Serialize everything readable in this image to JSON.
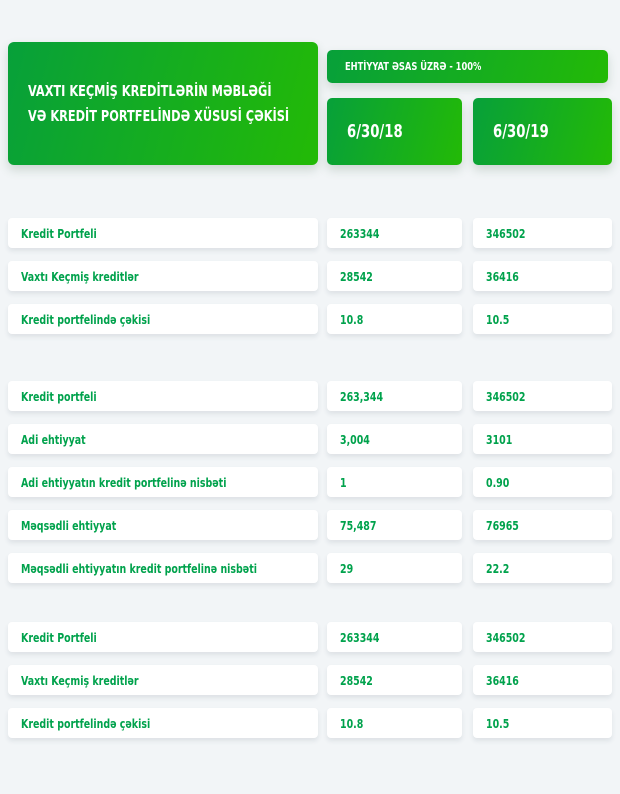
{
  "colors": {
    "gradient_start": "#07a03a",
    "gradient_end": "#23ba06",
    "text_green": "#00a24c",
    "page_background": "#f2f5f7"
  },
  "header": {
    "title_line1": "VAXTI KEÇMİŞ KREDİTLƏRİN MƏBLƏĞİ",
    "title_line2": "VƏ KREDİT PORTFELİNDƏ XÜSUSİ ÇƏKİSİ",
    "badge": "EHTİYYAT ƏSAS ÜZRƏ - 100%",
    "columns": [
      "6/30/18",
      "6/30/19"
    ]
  },
  "sections": [
    {
      "rows": [
        {
          "label": "Kredit Portfeli",
          "values": [
            "263344",
            "346502"
          ]
        },
        {
          "label": "Vaxtı Keçmiş kreditlər",
          "values": [
            "28542",
            "36416"
          ]
        },
        {
          "label": "Kredit portfelində çəkisi",
          "values": [
            "10.8",
            "10.5"
          ]
        }
      ]
    },
    {
      "rows": [
        {
          "label": "Kredit portfeli",
          "values": [
            "263,344",
            "346502"
          ]
        },
        {
          "label": "Adi ehtiyyat",
          "values": [
            "3,004",
            "3101"
          ]
        },
        {
          "label": "Adi ehtiyyatın kredit portfelinə nisbəti",
          "values": [
            "1",
            "0.90"
          ]
        },
        {
          "label": "Məqsədli ehtiyyat",
          "values": [
            "75,487",
            "76965"
          ]
        },
        {
          "label": "Məqsədli ehtiyyatın kredit portfelinə nisbəti",
          "values": [
            "29",
            "22.2"
          ]
        }
      ]
    },
    {
      "rows": [
        {
          "label": "Kredit Portfeli",
          "values": [
            "263344",
            "346502"
          ]
        },
        {
          "label": "Vaxtı Keçmiş kreditlər",
          "values": [
            "28542",
            "36416"
          ]
        },
        {
          "label": "Kredit portfelində çəkisi",
          "values": [
            "10.8",
            "10.5"
          ]
        }
      ]
    }
  ]
}
